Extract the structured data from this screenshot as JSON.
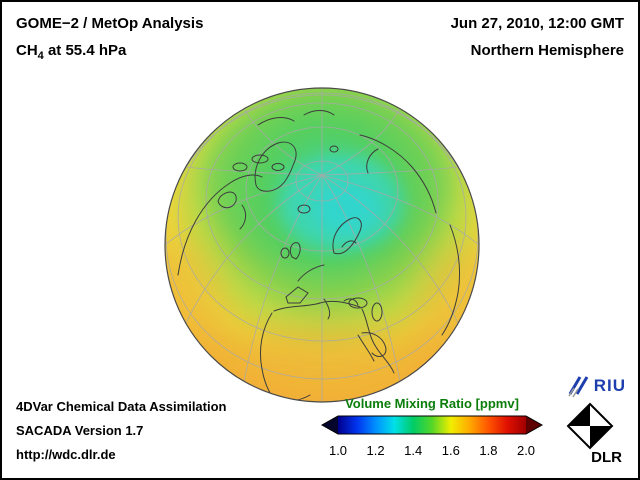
{
  "window": {
    "background": "#ffffff",
    "border_color": "#000000"
  },
  "header": {
    "product": "GOME−2 / MetOp Analysis",
    "species_prefix": "CH",
    "species_sub": "4",
    "species_rest": " at 55.4 hPa",
    "datetime": "Jun 27, 2010, 12:00 GMT",
    "region": "Northern Hemisphere"
  },
  "footer": {
    "line1": "4DVar Chemical Data Assimilation",
    "line2": "SACADA Version 1.7",
    "line3": "http://wdc.dlr.de"
  },
  "colorbar": {
    "title": "Volume Mixing Ratio [ppmv]",
    "title_color": "#0a7d0a",
    "units": "ppmv",
    "ticks": [
      "1.0",
      "1.2",
      "1.4",
      "1.6",
      "1.8",
      "2.0"
    ],
    "gradient": [
      "#00008c",
      "#0033ee",
      "#0090ff",
      "#00e0e8",
      "#00cc66",
      "#55d628",
      "#f0ee00",
      "#ffaa00",
      "#ff5500",
      "#e01000",
      "#a00000"
    ],
    "arrow_left_color": "#06062c",
    "arrow_right_color": "#5e0000"
  },
  "logos": {
    "riu_text": "RIU",
    "dlr_text": "DLR"
  },
  "chart_data": {
    "type": "heatmap",
    "title": "GOME−2 / MetOp Analysis — CH4 at 55.4 hPa, Northern Hemisphere, Jun 27, 2010, 12:00 GMT",
    "variable": "CH4 Volume Mixing Ratio",
    "units": "ppmv",
    "projection": "orthographic, Northern Hemisphere (pole near top of disc)",
    "colorbar_range": [
      1.0,
      2.0
    ],
    "colorbar_ticks": [
      1.0,
      1.2,
      1.4,
      1.6,
      1.8,
      2.0
    ],
    "field_pattern": [
      {
        "region": "Arctic polar cap (minimum, cyan)",
        "value_ppmv": 1.3
      },
      {
        "region": "Sub-polar / mid-latitudes (green to yellow-green)",
        "value_ppmv": 1.5
      },
      {
        "region": "Subtropics and globe limb (maximum, yellow-orange)",
        "value_ppmv": 1.65
      }
    ]
  }
}
